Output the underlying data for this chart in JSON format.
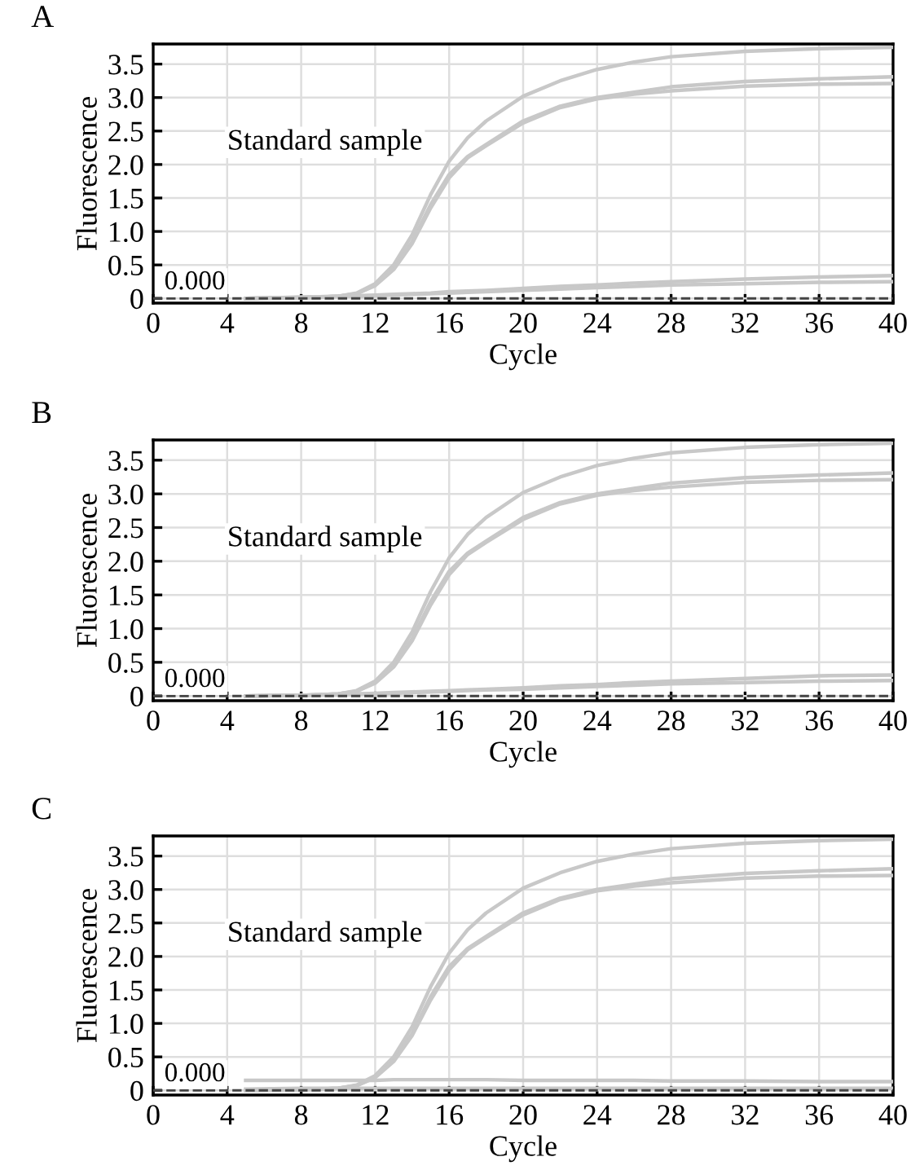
{
  "chart_data": [
    {
      "type": "line",
      "title": "A",
      "xlabel": "Cycle",
      "ylabel": "Fluorescence",
      "annotations": [
        "Standard sample"
      ],
      "grid": true,
      "line_style": "solid",
      "x": [
        5,
        8,
        10,
        11,
        12,
        13,
        14,
        15,
        16,
        17,
        18,
        20,
        22,
        24,
        26,
        28,
        32,
        36,
        40
      ],
      "xlim": [
        0,
        40
      ],
      "xticks": [
        0,
        4,
        8,
        12,
        16,
        20,
        24,
        28,
        32,
        36,
        40
      ],
      "ylim": [
        -0.07,
        3.8
      ],
      "yticks": [
        0,
        0.5,
        {
          "value": 1,
          "label": "1.0"
        },
        1.5,
        {
          "value": 2,
          "label": "2.0"
        },
        2.5,
        {
          "value": 3,
          "label": "3.0"
        },
        3.5
      ],
      "ref_lines": [
        {
          "axis": "y",
          "value": 0,
          "label": "0.000",
          "color": "#444444",
          "line_style": "dashed"
        }
      ],
      "series": [
        {
          "color": "#c8c8c8",
          "values": [
            0,
            0.01,
            0.03,
            0.08,
            0.22,
            0.5,
            0.95,
            1.55,
            2.05,
            2.4,
            2.65,
            3.02,
            3.25,
            3.42,
            3.53,
            3.61,
            3.69,
            3.73,
            3.75
          ]
        },
        {
          "color": "#c8c8c8",
          "values": [
            0,
            0.01,
            0.03,
            0.07,
            0.2,
            0.45,
            0.85,
            1.4,
            1.85,
            2.12,
            2.3,
            2.65,
            2.87,
            3.0,
            3.08,
            3.16,
            3.24,
            3.28,
            3.31
          ]
        },
        {
          "color": "#c8c8c8",
          "values": [
            0,
            0.01,
            0.03,
            0.07,
            0.19,
            0.43,
            0.82,
            1.35,
            1.8,
            2.1,
            2.28,
            2.62,
            2.85,
            2.98,
            3.05,
            3.1,
            3.17,
            3.2,
            3.21
          ]
        },
        {
          "color": "#c8c8c8",
          "values": [
            0,
            0.02,
            0.03,
            0.04,
            0.05,
            0.06,
            0.07,
            0.08,
            0.1,
            0.11,
            0.12,
            0.15,
            0.18,
            0.2,
            0.23,
            0.25,
            0.29,
            0.32,
            0.34
          ]
        },
        {
          "color": "#c8c8c8",
          "values": [
            0,
            0.02,
            0.03,
            0.03,
            0.04,
            0.05,
            0.06,
            0.07,
            0.08,
            0.09,
            0.1,
            0.12,
            0.14,
            0.16,
            0.18,
            0.2,
            0.22,
            0.24,
            0.25
          ]
        }
      ]
    },
    {
      "type": "line",
      "title": "B",
      "xlabel": "Cycle",
      "ylabel": "Fluorescence",
      "annotations": [
        "Standard sample"
      ],
      "grid": true,
      "line_style": "solid",
      "x": [
        5,
        8,
        10,
        11,
        12,
        13,
        14,
        15,
        16,
        17,
        18,
        20,
        22,
        24,
        26,
        28,
        32,
        36,
        40
      ],
      "xlim": [
        0,
        40
      ],
      "xticks": [
        0,
        4,
        8,
        12,
        16,
        20,
        24,
        28,
        32,
        36,
        40
      ],
      "ylim": [
        -0.07,
        3.8
      ],
      "yticks": [
        0,
        0.5,
        {
          "value": 1,
          "label": "1.0"
        },
        1.5,
        {
          "value": 2,
          "label": "2.0"
        },
        2.5,
        {
          "value": 3,
          "label": "3.0"
        },
        3.5
      ],
      "ref_lines": [
        {
          "axis": "y",
          "value": 0,
          "label": "0.000",
          "color": "#444444",
          "line_style": "dashed"
        }
      ],
      "series": [
        {
          "color": "#c8c8c8",
          "values": [
            0,
            0.01,
            0.03,
            0.08,
            0.22,
            0.5,
            0.95,
            1.55,
            2.05,
            2.4,
            2.65,
            3.02,
            3.25,
            3.42,
            3.53,
            3.61,
            3.69,
            3.73,
            3.75
          ]
        },
        {
          "color": "#c8c8c8",
          "values": [
            0,
            0.01,
            0.03,
            0.07,
            0.2,
            0.45,
            0.85,
            1.4,
            1.85,
            2.12,
            2.3,
            2.65,
            2.87,
            3.0,
            3.08,
            3.16,
            3.24,
            3.28,
            3.31
          ]
        },
        {
          "color": "#c8c8c8",
          "values": [
            0,
            0.01,
            0.03,
            0.07,
            0.19,
            0.43,
            0.82,
            1.35,
            1.8,
            2.1,
            2.28,
            2.62,
            2.85,
            2.98,
            3.05,
            3.1,
            3.17,
            3.2,
            3.21
          ]
        },
        {
          "color": "#c8c8c8",
          "values": [
            0,
            0.01,
            0.02,
            0.03,
            0.04,
            0.05,
            0.06,
            0.07,
            0.08,
            0.09,
            0.1,
            0.12,
            0.15,
            0.17,
            0.2,
            0.22,
            0.26,
            0.3,
            0.31
          ]
        },
        {
          "color": "#c8c8c8",
          "values": [
            0,
            0.01,
            0.02,
            0.03,
            0.03,
            0.04,
            0.05,
            0.06,
            0.07,
            0.08,
            0.09,
            0.1,
            0.12,
            0.14,
            0.16,
            0.18,
            0.2,
            0.22,
            0.23
          ]
        }
      ]
    },
    {
      "type": "line",
      "title": "C",
      "xlabel": "Cycle",
      "ylabel": "Fluorescence",
      "annotations": [
        "Standard sample"
      ],
      "grid": true,
      "line_style": "solid",
      "x": [
        5,
        8,
        10,
        11,
        12,
        13,
        14,
        15,
        16,
        17,
        18,
        20,
        22,
        24,
        26,
        28,
        32,
        36,
        40
      ],
      "xlim": [
        0,
        40
      ],
      "xticks": [
        0,
        4,
        8,
        12,
        16,
        20,
        24,
        28,
        32,
        36,
        40
      ],
      "ylim": [
        -0.07,
        3.8
      ],
      "yticks": [
        0,
        0.5,
        {
          "value": 1,
          "label": "1.0"
        },
        1.5,
        {
          "value": 2,
          "label": "2.0"
        },
        2.5,
        {
          "value": 3,
          "label": "3.0"
        },
        3.5
      ],
      "ref_lines": [
        {
          "axis": "y",
          "value": 0,
          "label": "0.000",
          "color": "#444444",
          "line_style": "dashed"
        }
      ],
      "series": [
        {
          "color": "#c8c8c8",
          "values": [
            0,
            0.01,
            0.03,
            0.08,
            0.22,
            0.5,
            0.95,
            1.55,
            2.05,
            2.4,
            2.65,
            3.02,
            3.25,
            3.42,
            3.53,
            3.61,
            3.69,
            3.73,
            3.75
          ]
        },
        {
          "color": "#c8c8c8",
          "values": [
            0,
            0.01,
            0.03,
            0.07,
            0.2,
            0.45,
            0.85,
            1.4,
            1.85,
            2.12,
            2.3,
            2.65,
            2.87,
            3.0,
            3.08,
            3.16,
            3.24,
            3.28,
            3.31
          ]
        },
        {
          "color": "#c8c8c8",
          "values": [
            0,
            0.01,
            0.03,
            0.07,
            0.19,
            0.43,
            0.82,
            1.35,
            1.8,
            2.1,
            2.28,
            2.62,
            2.85,
            2.98,
            3.05,
            3.1,
            3.17,
            3.2,
            3.21
          ]
        },
        {
          "color": "#c8c8c8",
          "values": [
            0.15,
            0.15,
            0.15,
            0.15,
            0.15,
            0.16,
            0.16,
            0.16,
            0.16,
            0.16,
            0.16,
            0.15,
            0.15,
            0.15,
            0.15,
            0.14,
            0.14,
            0.13,
            0.13
          ]
        },
        {
          "color": "#c8c8c8",
          "values": [
            0.02,
            0.03,
            0.03,
            0.03,
            0.03,
            0.03,
            0.03,
            0.03,
            0.03,
            0.03,
            0.03,
            0.03,
            0.03,
            0.03,
            0.03,
            0.03,
            0.03,
            0.03,
            0.03
          ]
        }
      ]
    }
  ]
}
